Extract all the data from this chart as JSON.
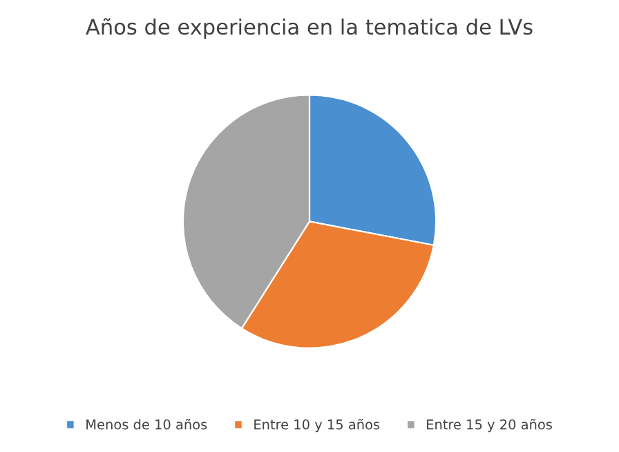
{
  "chart_data": {
    "type": "pie",
    "title": "Años de experiencia en la tematica de LVs",
    "categories": [
      "Menos de 10 años",
      "Entre 10 y 15 años",
      "Entre 15 y 20 años"
    ],
    "values": [
      28,
      31,
      41
    ],
    "colors": [
      "#4a8fd0",
      "#ed7d31",
      "#a5a5a5"
    ],
    "legend": "bottom"
  }
}
